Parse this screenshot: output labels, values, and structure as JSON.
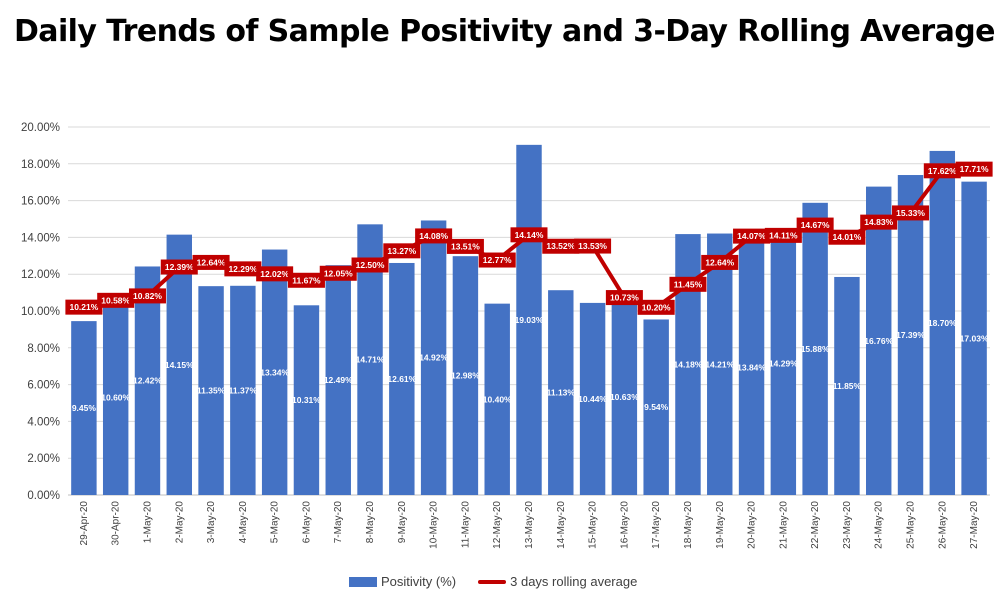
{
  "chart_data": {
    "type": "bar",
    "title": "Daily Trends of Sample Positivity and 3-Day Rolling Average",
    "xlabel": "",
    "ylabel": "",
    "ylim": [
      0,
      20
    ],
    "y_ticks": [
      "0.00%",
      "2.00%",
      "4.00%",
      "6.00%",
      "8.00%",
      "10.00%",
      "12.00%",
      "14.00%",
      "16.00%",
      "18.00%",
      "20.00%"
    ],
    "grid": true,
    "legend_position": "bottom",
    "categories": [
      "29-Apr-20",
      "30-Apr-20",
      "1-May-20",
      "2-May-20",
      "3-May-20",
      "4-May-20",
      "5-May-20",
      "6-May-20",
      "7-May-20",
      "8-May-20",
      "9-May-20",
      "10-May-20",
      "11-May-20",
      "12-May-20",
      "13-May-20",
      "14-May-20",
      "15-May-20",
      "16-May-20",
      "17-May-20",
      "18-May-20",
      "19-May-20",
      "20-May-20",
      "21-May-20",
      "22-May-20",
      "23-May-20",
      "24-May-20",
      "25-May-20",
      "26-May-20",
      "27-May-20"
    ],
    "series": [
      {
        "name": "Positivity (%)",
        "type": "bar",
        "color": "#4472C4",
        "values": [
          9.45,
          10.6,
          12.42,
          14.15,
          11.35,
          11.37,
          13.34,
          10.31,
          12.49,
          14.71,
          12.61,
          14.92,
          12.98,
          10.4,
          19.03,
          11.13,
          10.44,
          10.63,
          9.54,
          14.18,
          14.21,
          13.84,
          14.29,
          15.88,
          11.85,
          16.76,
          17.39,
          18.7,
          17.03
        ],
        "labels": [
          "9.45%",
          "10.60%",
          "12.42%",
          "14.15%",
          "11.35%",
          "11.37%",
          "13.34%",
          "10.31%",
          "12.49%",
          "14.71%",
          "12.61%",
          "14.92%",
          "12.98%",
          "10.40%",
          "19.03%",
          "11.13%",
          "10.44%",
          "10.63%",
          "9.54%",
          "14.18%",
          "14.21%",
          "13.84%",
          "14.29%",
          "15.88%",
          "11.85%",
          "16.76%",
          "17.39%",
          "18.70%",
          "17.03%"
        ]
      },
      {
        "name": "3 days rolling average",
        "type": "line",
        "color": "#C00000",
        "values": [
          10.21,
          10.58,
          10.82,
          12.39,
          12.64,
          12.29,
          12.02,
          11.67,
          12.05,
          12.5,
          13.27,
          14.08,
          13.51,
          12.77,
          14.14,
          13.52,
          13.53,
          10.73,
          10.2,
          11.45,
          12.64,
          14.07,
          14.11,
          14.67,
          14.01,
          14.83,
          15.33,
          17.62,
          17.71
        ],
        "labels": [
          "10.21%",
          "10.58%",
          "10.82%",
          "12.39%",
          "12.64%",
          "12.29%",
          "12.02%",
          "11.67%",
          "12.05%",
          "12.50%",
          "13.27%",
          "14.08%",
          "13.51%",
          "12.77%",
          "14.14%",
          "13.52%",
          "13.53%",
          "10.73%",
          "10.20%",
          "11.45%",
          "12.64%",
          "14.07%",
          "14.11%",
          "14.67%",
          "14.01%",
          "14.83%",
          "15.33%",
          "17.62%",
          "17.71%"
        ]
      }
    ]
  }
}
